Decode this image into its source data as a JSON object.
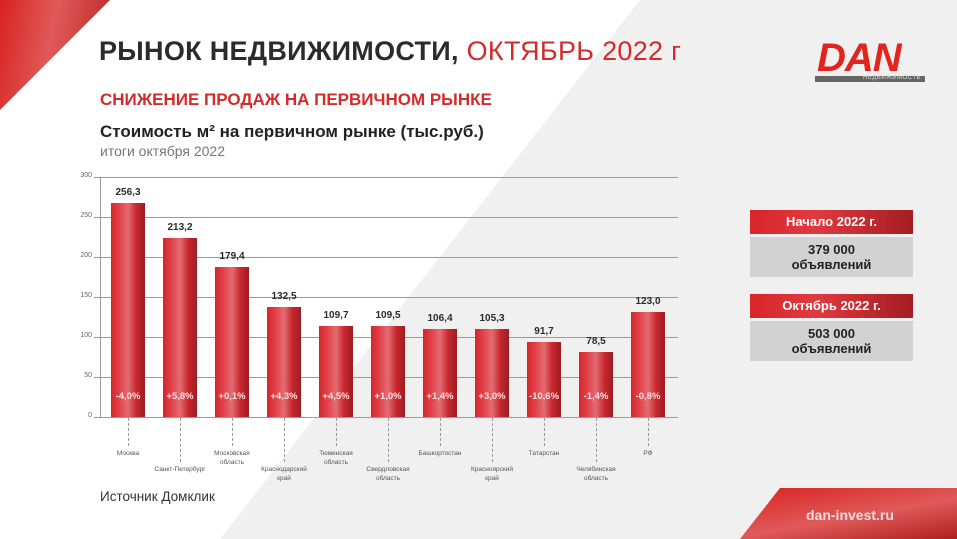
{
  "header": {
    "title_main": "РЫНОК НЕДВИЖИМОСТИ, ",
    "title_accent": "ОКТЯБРЬ 2022 г",
    "subtitle": "СНИЖЕНИЕ ПРОДАЖ НА ПЕРВИЧНОМ РЫНКЕ"
  },
  "logo": {
    "name": "DAN",
    "tagline": "НЕДВИЖИМОСТЬ"
  },
  "chart_data": {
    "type": "bar",
    "title": "Стоимость м² на первичном рынке (тыс.руб.)",
    "subtitle": "итоги октября 2022",
    "xlabel": "",
    "ylabel": "",
    "ylim": [
      0,
      300
    ],
    "yticks": [
      "0",
      "50",
      "100",
      "150",
      "200",
      "250",
      "300"
    ],
    "grid": true,
    "legend": null,
    "categories": [
      "Москва",
      "Санкт-Петербург",
      "Московская область",
      "Краснодарский край",
      "Тюменская область",
      "Свердловская область",
      "Башкортостан",
      "Красноярский край",
      "Татарстан",
      "Челябинская область",
      "РФ"
    ],
    "values": [
      256.3,
      213.2,
      179.4,
      132.5,
      109.7,
      109.5,
      106.4,
      105.3,
      91.7,
      78.5,
      123.0
    ],
    "value_labels": [
      "256,3",
      "213,2",
      "179,4",
      "132,5",
      "109,7",
      "109,5",
      "106,4",
      "105,3",
      "91,7",
      "78,5",
      "123,0"
    ],
    "change_labels": [
      "-4,0%",
      "+5,8%",
      "+0,1%",
      "+4,3%",
      "+4,5%",
      "+1,0%",
      "+1,4%",
      "+3,0%",
      "-10,6%",
      "-1,4%",
      "-0,8%"
    ],
    "category_lines": [
      [
        "Москва"
      ],
      [
        "Санкт-Петербург"
      ],
      [
        "Московская",
        "область"
      ],
      [
        "Краснодарский",
        "край"
      ],
      [
        "Тюменская",
        "область"
      ],
      [
        "Свердловская",
        "область"
      ],
      [
        "Башкортостан"
      ],
      [
        "Красноярский",
        "край"
      ],
      [
        "Татарстан"
      ],
      [
        "Челябинская",
        "область"
      ],
      [
        "РФ"
      ]
    ],
    "bar_color": "#d4252a"
  },
  "source": "Источник Домклик",
  "stats": [
    {
      "label": "Начало 2022 г.",
      "value": "379 000",
      "unit": "объявлений"
    },
    {
      "label": "Октябрь 2022 г.",
      "value": "503 000",
      "unit": "объявлений"
    }
  ],
  "footer": {
    "website": "dan-invest.ru"
  },
  "colors": {
    "accent": "#d42a2a",
    "text": "#2b2b2b",
    "stat_body": "#d2d2d2"
  }
}
